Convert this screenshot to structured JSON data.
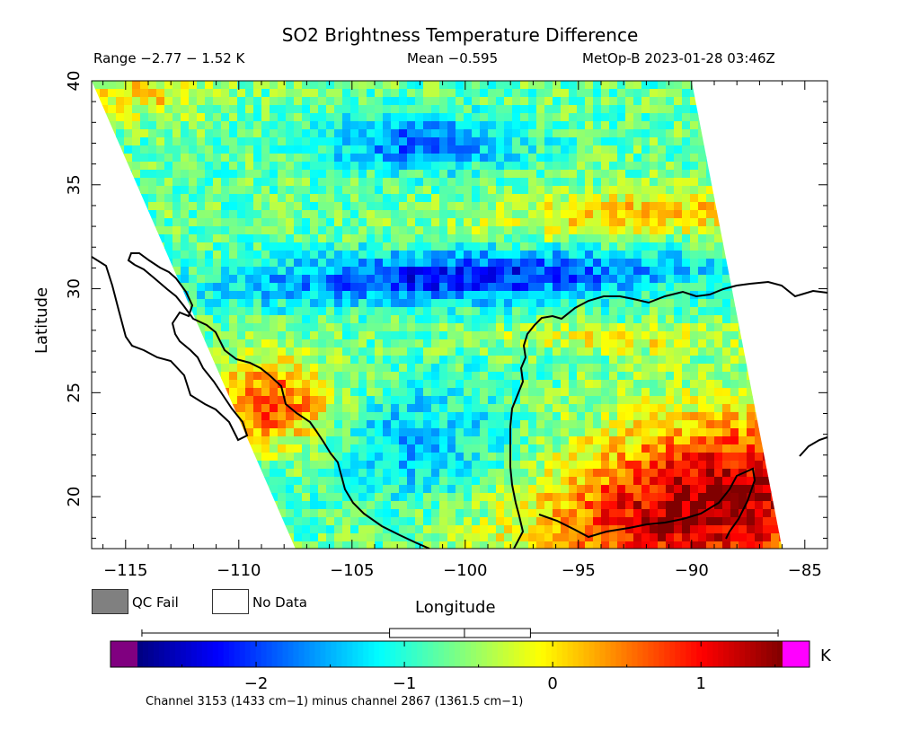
{
  "header": {
    "title": "SO2 Brightness Temperature Difference",
    "range": "Range −2.77 − 1.52 K",
    "mean": "Mean −0.595",
    "satellite_time": "MetOp-B 2023-01-28 03:46Z"
  },
  "legend": {
    "qc_fail_label": "QC Fail",
    "no_data_label": "No Data",
    "unit": "K",
    "footnote": "Channel 3153 (1433 cm−1) minus channel 2867 (1361.5 cm−1)",
    "colors": {
      "qc_fail": "#808080",
      "no_data": "#ffffff",
      "under": "#800080",
      "over": "#ff00ff"
    }
  },
  "chart_data": {
    "type": "heatmap",
    "title": "SO2 Brightness Temperature Difference",
    "xlabel": "Longitude",
    "ylabel": "Latitude",
    "xlim": [
      -116.5,
      -84.0
    ],
    "ylim": [
      17.5,
      40.0
    ],
    "xticks": [
      -115,
      -110,
      -105,
      -100,
      -95,
      -90,
      -85
    ],
    "yticks": [
      20,
      25,
      30,
      35,
      40
    ],
    "xtick_labels": [
      "−115",
      "−110",
      "−105",
      "−100",
      "−95",
      "−90",
      "−85"
    ],
    "ytick_labels": [
      "20",
      "25",
      "30",
      "35",
      "40"
    ],
    "units": "K",
    "value_range": [
      -2.77,
      1.52
    ],
    "mean": -0.595,
    "colorbar": {
      "vmin": -2.8,
      "vmax": 1.55,
      "ticks": [
        -2,
        -1,
        0,
        1
      ],
      "tick_labels": [
        "−2",
        "−1",
        "0",
        "1"
      ],
      "colormap": [
        "#000080",
        "#0000ff",
        "#0080ff",
        "#00ffff",
        "#80ff80",
        "#ffff00",
        "#ff8000",
        "#ff0000",
        "#800000"
      ]
    },
    "range_box": {
      "min": -2.77,
      "max": 1.52,
      "mean_box_low": -1.1,
      "mean_box_high": -0.15,
      "mean": -0.595
    },
    "swath_corners": [
      {
        "lon": -116.5,
        "lat": 40.0
      },
      {
        "lon": -90.0,
        "lat": 40.0
      },
      {
        "lon": -86.0,
        "lat": 17.5
      },
      {
        "lon": -107.5,
        "lat": 17.5
      }
    ],
    "features": [
      {
        "name": "strong negative band",
        "lat": 30.5,
        "lon_range": [
          -110,
          -92
        ],
        "value": -2.2
      },
      {
        "name": "negative patch",
        "lat": 37.0,
        "lon_range": [
          -105,
          -100
        ],
        "value": -1.9
      },
      {
        "name": "positive band",
        "lat": 33.5,
        "lon_range": [
          -100,
          -88
        ],
        "value": 0.6
      },
      {
        "name": "positive region (Yucatan)",
        "lat": 21.0,
        "lon_range": [
          -95,
          -86
        ],
        "value": 1.4
      },
      {
        "name": "positive corner",
        "lat": 39.5,
        "lon_range": [
          -116,
          -113
        ],
        "value": 1.0
      }
    ]
  }
}
